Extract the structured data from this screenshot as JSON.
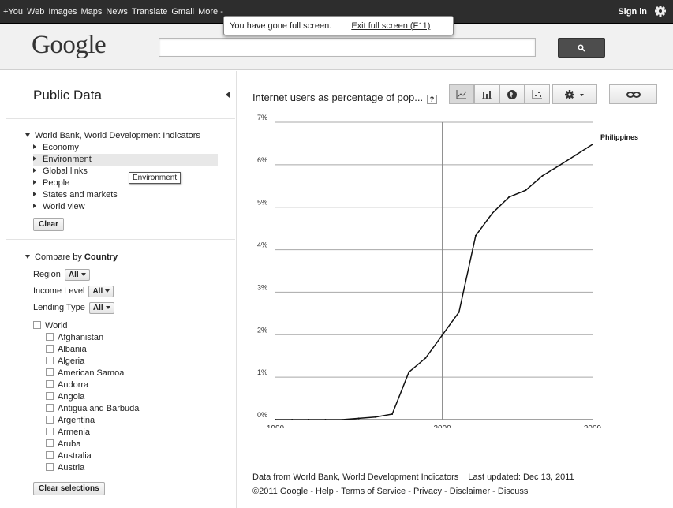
{
  "topnav": {
    "items": [
      "+You",
      "Web",
      "Images",
      "Maps",
      "News",
      "Translate",
      "Gmail",
      "More -"
    ],
    "sign_in": "Sign in"
  },
  "fullscreen": {
    "message": "You have gone full screen.",
    "exit_label": "Exit full screen (F11)"
  },
  "header": {
    "logo": "Google",
    "search_value": ""
  },
  "sidebar": {
    "title": "Public Data",
    "dataset": "World Bank, World Development Indicators",
    "topics": [
      "Economy",
      "Environment",
      "Global links",
      "People",
      "States and markets",
      "World view"
    ],
    "selected_topic": "Environment",
    "tooltip": "Environment",
    "clear_label": "Clear",
    "compare_label": "Compare by",
    "compare_value": "Country",
    "filters": [
      {
        "label": "Region",
        "value": "All"
      },
      {
        "label": "Income Level",
        "value": "All"
      },
      {
        "label": "Lending Type",
        "value": "All"
      }
    ],
    "world_label": "World",
    "countries": [
      "Afghanistan",
      "Albania",
      "Algeria",
      "American Samoa",
      "Andorra",
      "Angola",
      "Antigua and Barbuda",
      "Argentina",
      "Armenia",
      "Aruba",
      "Australia",
      "Austria"
    ],
    "clear_selections_label": "Clear selections"
  },
  "main": {
    "chart_title": "Internet users as percentage of pop...",
    "help_label": "?",
    "footer_source": "Data from World Bank, World Development Indicators",
    "footer_updated": "Last updated: Dec 13, 2011",
    "footer_links": "©2011 Google - Help - Terms of Service - Privacy - Disclaimer - Discuss"
  },
  "chart_data": {
    "type": "line",
    "title": "Internet users as percentage of pop...",
    "xlim": [
      1990,
      2009
    ],
    "ylim": [
      0,
      7
    ],
    "x_ticks": [
      "1990",
      "2000",
      "2009"
    ],
    "y_ticks": [
      "0%",
      "1%",
      "2%",
      "3%",
      "4%",
      "5%",
      "6%",
      "7%"
    ],
    "timeline_labels": [
      "1990",
      "2000"
    ],
    "series": [
      {
        "name": "Philippines",
        "x": [
          1990,
          1991,
          1992,
          1993,
          1994,
          1995,
          1996,
          1997,
          1998,
          1999,
          2000,
          2001,
          2002,
          2003,
          2004,
          2005,
          2006,
          2007,
          2008,
          2009
        ],
        "values": [
          0,
          0,
          0,
          0,
          0,
          0.03,
          0.06,
          0.13,
          1.12,
          1.45,
          1.99,
          2.53,
          4.33,
          4.86,
          5.24,
          5.4,
          5.74,
          5.98,
          6.23,
          6.48
        ]
      }
    ]
  },
  "colors": {
    "topbar": "#2d2d2d",
    "line": "#111111",
    "grid": "#9a9a9a"
  }
}
